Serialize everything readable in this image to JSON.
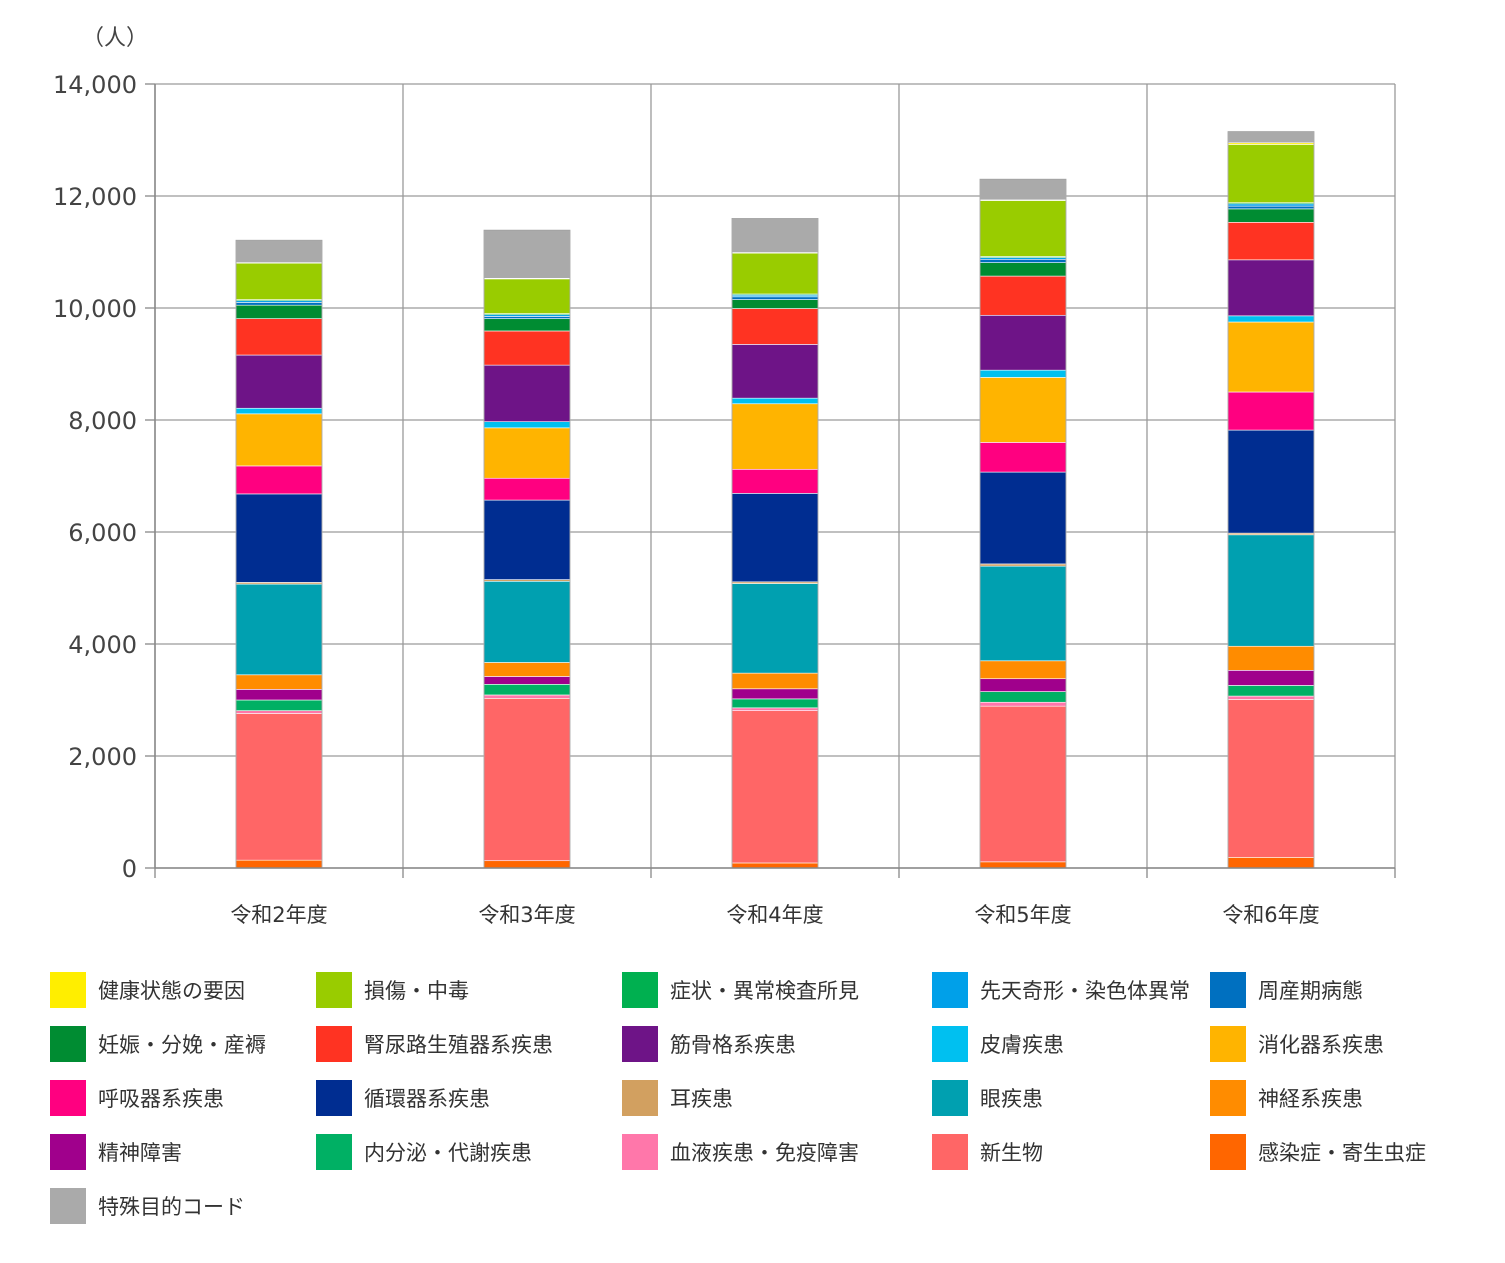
{
  "chart_data": {
    "type": "bar",
    "stacked": true,
    "unit_label": "（人）",
    "categories": [
      "令和2年度",
      "令和3年度",
      "令和4年度",
      "令和5年度",
      "令和6年度"
    ],
    "ylim": [
      0,
      14000
    ],
    "yticks": [
      "0",
      "2,000",
      "4,000",
      "6,000",
      "8,000",
      "10,000",
      "12,000",
      "14,000"
    ],
    "grid": true,
    "legend_position": "bottom",
    "series": [
      {
        "name": "感染症・寄生虫症",
        "color": "#FF6600",
        "values": [
          140,
          130,
          90,
          110,
          190
        ]
      },
      {
        "name": "新生物",
        "color": "#FF6666",
        "values": [
          2620,
          2900,
          2720,
          2780,
          2820
        ]
      },
      {
        "name": "血液疾患・免疫障害",
        "color": "#FF77AA",
        "values": [
          50,
          60,
          50,
          70,
          60
        ]
      },
      {
        "name": "内分泌・代謝疾患",
        "color": "#00B064",
        "values": [
          190,
          190,
          160,
          190,
          190
        ]
      },
      {
        "name": "精神障害",
        "color": "#A0008C",
        "values": [
          190,
          140,
          180,
          230,
          270
        ]
      },
      {
        "name": "神経系疾患",
        "color": "#FF8C00",
        "values": [
          260,
          250,
          280,
          320,
          430
        ]
      },
      {
        "name": "眼疾患",
        "color": "#00A0B0",
        "values": [
          1620,
          1450,
          1600,
          1690,
          1990
        ]
      },
      {
        "name": "耳疾患",
        "color": "#D2A060",
        "values": [
          30,
          30,
          30,
          40,
          30
        ]
      },
      {
        "name": "循環器系疾患",
        "color": "#002D91",
        "values": [
          1580,
          1420,
          1580,
          1640,
          1840
        ]
      },
      {
        "name": "呼吸器系疾患",
        "color": "#FF0080",
        "values": [
          500,
          390,
          430,
          530,
          680
        ]
      },
      {
        "name": "消化器系疾患",
        "color": "#FFB400",
        "values": [
          930,
          900,
          1170,
          1160,
          1250
        ]
      },
      {
        "name": "皮膚疾患",
        "color": "#00C0F0",
        "values": [
          100,
          110,
          100,
          130,
          110
        ]
      },
      {
        "name": "筋骨格系疾患",
        "color": "#6E1487",
        "values": [
          950,
          1010,
          960,
          980,
          1000
        ]
      },
      {
        "name": "腎尿路生殖器系疾患",
        "color": "#FF3322",
        "values": [
          650,
          610,
          640,
          700,
          670
        ]
      },
      {
        "name": "妊娠・分娩・産褥",
        "color": "#008C32",
        "values": [
          240,
          220,
          160,
          240,
          240
        ]
      },
      {
        "name": "周産期病態",
        "color": "#0070C0",
        "values": [
          50,
          40,
          50,
          60,
          50
        ]
      },
      {
        "name": "先天奇形・染色体異常",
        "color": "#00A0E9",
        "values": [
          30,
          30,
          30,
          30,
          40
        ]
      },
      {
        "name": "症状・異常検査所見",
        "color": "#00B050",
        "values": [
          20,
          20,
          20,
          20,
          20
        ]
      },
      {
        "name": "損傷・中毒",
        "color": "#99CC00",
        "values": [
          650,
          620,
          730,
          1000,
          1040
        ]
      },
      {
        "name": "健康状態の要因",
        "color": "#FFEE00",
        "values": [
          10,
          10,
          10,
          10,
          30
        ]
      },
      {
        "name": "特殊目的コード",
        "color": "#AAAAAA",
        "values": [
          400,
          860,
          610,
          370,
          200
        ]
      }
    ],
    "legend_order": [
      "健康状態の要因",
      "損傷・中毒",
      "症状・異常検査所見",
      "先天奇形・染色体異常",
      "周産期病態",
      "妊娠・分娩・産褥",
      "腎尿路生殖器系疾患",
      "筋骨格系疾患",
      "皮膚疾患",
      "消化器系疾患",
      "呼吸器系疾患",
      "循環器系疾患",
      "耳疾患",
      "眼疾患",
      "神経系疾患",
      "精神障害",
      "内分泌・代謝疾患",
      "血液疾患・免疫障害",
      "新生物",
      "感染症・寄生虫症",
      "特殊目的コード"
    ]
  }
}
